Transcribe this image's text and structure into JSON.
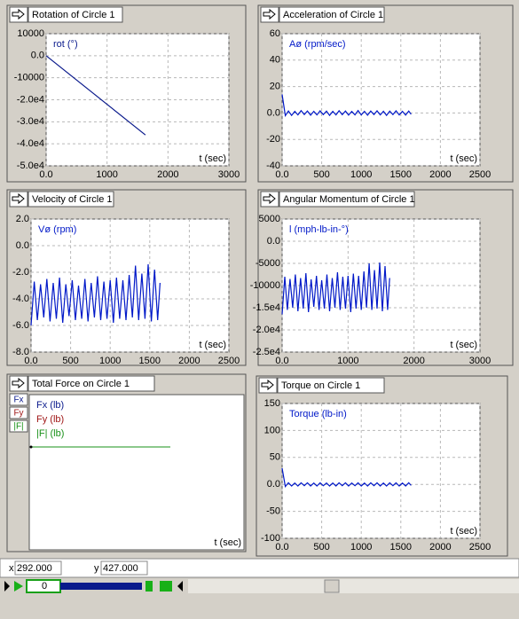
{
  "chart_data": [
    {
      "type": "line",
      "title": "Rotation of Circle 1",
      "x_label": "t (sec)",
      "grid": true,
      "xlim": [
        0,
        3000
      ],
      "xticks": [
        {
          "value": 0,
          "label": "0.0"
        },
        1000,
        2000,
        3000
      ],
      "ylim": [
        -50000,
        10000
      ],
      "yticks": [
        {
          "value": -50000,
          "label": "-5.0e4"
        },
        {
          "value": -40000,
          "label": "-4.0e4"
        },
        {
          "value": -30000,
          "label": "-3.0e4"
        },
        {
          "value": -20000,
          "label": "-2.0e4"
        },
        -10000,
        {
          "value": 0,
          "label": "0.0"
        },
        10000
      ],
      "x": [
        0,
        1630
      ],
      "series": [
        {
          "name": "rot (°)",
          "color": "#0a1a8c",
          "values": [
            0,
            -36000
          ]
        }
      ]
    },
    {
      "type": "line",
      "title": "Acceleration of Circle 1",
      "x_label": "t (sec)",
      "grid": true,
      "xlim": [
        0,
        2500
      ],
      "xticks": [
        {
          "value": 0,
          "label": "0.0"
        },
        500,
        1000,
        1500,
        2000,
        2500
      ],
      "ylim": [
        -40,
        60
      ],
      "yticks": [
        -40,
        -20,
        {
          "value": 0,
          "label": "0.0"
        },
        20,
        40,
        60
      ],
      "x": [
        0,
        40,
        80,
        120,
        160,
        200,
        240,
        280,
        320,
        360,
        400,
        440,
        480,
        520,
        560,
        600,
        640,
        680,
        720,
        760,
        800,
        840,
        880,
        920,
        960,
        1000,
        1040,
        1080,
        1120,
        1160,
        1200,
        1240,
        1280,
        1320,
        1360,
        1400,
        1440,
        1480,
        1520,
        1560,
        1600,
        1630
      ],
      "series": [
        {
          "name": "Aø (rpm/sec)",
          "color": "#0018c8",
          "values": [
            14,
            -2,
            1.5,
            -1.8,
            1.2,
            -1.5,
            1.8,
            -1.2,
            1.5,
            -1.7,
            1.3,
            -1.5,
            1.6,
            -1.2,
            1.4,
            -1.8,
            1.2,
            -1.5,
            1.7,
            -1.3,
            1.5,
            -1.6,
            1.2,
            -1.4,
            1.8,
            -1.5,
            1.3,
            -1.7,
            1.5,
            -1.2,
            1.6,
            -1.5,
            1.3,
            -1.8,
            1.4,
            -1.2,
            1.6,
            -1.5,
            1.3,
            -1.6,
            1.5,
            -1
          ]
        }
      ]
    },
    {
      "type": "line",
      "title": "Velocity of Circle 1",
      "x_label": "t (sec)",
      "grid": true,
      "xlim": [
        0,
        2500
      ],
      "xticks": [
        {
          "value": 0,
          "label": "0.0"
        },
        500,
        1000,
        1500,
        2000,
        2500
      ],
      "ylim": [
        -8,
        2
      ],
      "yticks": [
        {
          "value": -8,
          "label": "-8.0"
        },
        {
          "value": -6,
          "label": "-6.0"
        },
        {
          "value": -4,
          "label": "-4.0"
        },
        {
          "value": -2,
          "label": "-2.0"
        },
        {
          "value": 0,
          "label": "0.0"
        },
        {
          "value": 2,
          "label": "2.0"
        }
      ],
      "x": [
        0,
        40,
        80,
        120,
        160,
        200,
        240,
        280,
        320,
        360,
        400,
        440,
        480,
        520,
        560,
        600,
        640,
        680,
        720,
        760,
        800,
        840,
        880,
        920,
        960,
        1000,
        1040,
        1080,
        1120,
        1160,
        1200,
        1240,
        1280,
        1320,
        1360,
        1400,
        1440,
        1480,
        1520,
        1560,
        1600,
        1630
      ],
      "series": [
        {
          "name": "Vø (rpm)",
          "color": "#0018c8",
          "values": [
            -6.0,
            -2.7,
            -5.6,
            -2.9,
            -5.4,
            -2.5,
            -5.7,
            -2.8,
            -5.5,
            -2.4,
            -5.8,
            -2.9,
            -5.3,
            -2.6,
            -5.6,
            -3.0,
            -5.5,
            -2.5,
            -5.7,
            -2.8,
            -5.4,
            -2.3,
            -5.6,
            -2.7,
            -5.5,
            -2.6,
            -5.8,
            -2.4,
            -5.5,
            -2.6,
            -5.6,
            -2.2,
            -5.4,
            -1.5,
            -5.6,
            -2.1,
            -5.5,
            -1.4,
            -5.7,
            -1.8,
            -5.6,
            -2.8
          ]
        }
      ]
    },
    {
      "type": "line",
      "title": "Angular Momentum of Circle 1",
      "x_label": "t (sec)",
      "grid": true,
      "xlim": [
        0,
        3000
      ],
      "xticks": [
        {
          "value": 0,
          "label": "0.0"
        },
        1000,
        2000,
        3000
      ],
      "ylim": [
        -25000,
        5000
      ],
      "yticks": [
        {
          "value": -25000,
          "label": "-2.5e4"
        },
        {
          "value": -20000,
          "label": "-2.0e4"
        },
        {
          "value": -15000,
          "label": "-1.5e4"
        },
        -10000,
        -5000,
        {
          "value": 0,
          "label": "0.0"
        },
        5000
      ],
      "x": [
        0,
        40,
        80,
        120,
        160,
        200,
        240,
        280,
        320,
        360,
        400,
        440,
        480,
        520,
        560,
        600,
        640,
        680,
        720,
        760,
        800,
        840,
        880,
        920,
        960,
        1000,
        1040,
        1080,
        1120,
        1160,
        1200,
        1240,
        1280,
        1320,
        1360,
        1400,
        1440,
        1480,
        1520,
        1560,
        1600,
        1630
      ],
      "series": [
        {
          "name": "l (mph-lb-in-°)",
          "color": "#0018c8",
          "values": [
            -16500,
            -8000,
            -15500,
            -8500,
            -15000,
            -7500,
            -15800,
            -8300,
            -15200,
            -7200,
            -16000,
            -8600,
            -14800,
            -7800,
            -15500,
            -8800,
            -15200,
            -7500,
            -15800,
            -8300,
            -15000,
            -7000,
            -15500,
            -8000,
            -15200,
            -7800,
            -16000,
            -7300,
            -15200,
            -7800,
            -15500,
            -6800,
            -15000,
            -5000,
            -15500,
            -6500,
            -15200,
            -4800,
            -15800,
            -5600,
            -15500,
            -8300
          ]
        }
      ]
    },
    {
      "type": "line",
      "title": "Total Force on Circle 1",
      "x_label": "t (sec)",
      "buttons": [
        "Fx",
        "Fy",
        "|F|"
      ],
      "series": [
        {
          "name": "Fx (lb)",
          "color": "#0a1a8c"
        },
        {
          "name": "Fy (lb)",
          "color": "#a01818"
        },
        {
          "name": "|F| (lb)",
          "color": "#189018"
        }
      ]
    },
    {
      "type": "line",
      "title": "Torque on Circle 1",
      "x_label": "t (sec)",
      "grid": true,
      "xlim": [
        0,
        2500
      ],
      "xticks": [
        {
          "value": 0,
          "label": "0.0"
        },
        500,
        1000,
        1500,
        2000,
        2500
      ],
      "ylim": [
        -100,
        150
      ],
      "yticks": [
        -100,
        -50,
        {
          "value": 0,
          "label": "0.0"
        },
        50,
        100,
        150
      ],
      "x": [
        0,
        40,
        80,
        120,
        160,
        200,
        240,
        280,
        320,
        360,
        400,
        440,
        480,
        520,
        560,
        600,
        640,
        680,
        720,
        760,
        800,
        840,
        880,
        920,
        960,
        1000,
        1040,
        1080,
        1120,
        1160,
        1200,
        1240,
        1280,
        1320,
        1360,
        1400,
        1440,
        1480,
        1520,
        1560,
        1600,
        1630
      ],
      "series": [
        {
          "name": "Torque (lb-in)",
          "color": "#0018c8",
          "values": [
            30,
            -4,
            3,
            -3,
            2.5,
            -3,
            3,
            -2.5,
            3,
            -3,
            2.5,
            -3,
            3,
            -2.5,
            2.5,
            -3,
            2.5,
            -3,
            3,
            -2.5,
            3,
            -3,
            2.5,
            -2.5,
            3,
            -3,
            2.5,
            -3,
            3,
            -2.5,
            3,
            -3,
            2.5,
            -3,
            3,
            -2.5,
            3,
            -3,
            2.5,
            -3,
            3,
            -2
          ]
        }
      ]
    }
  ],
  "status": {
    "x_label": "x",
    "x_value": "292.000",
    "y_label": "y",
    "y_value": "427.000"
  },
  "player": {
    "frame": "0"
  }
}
